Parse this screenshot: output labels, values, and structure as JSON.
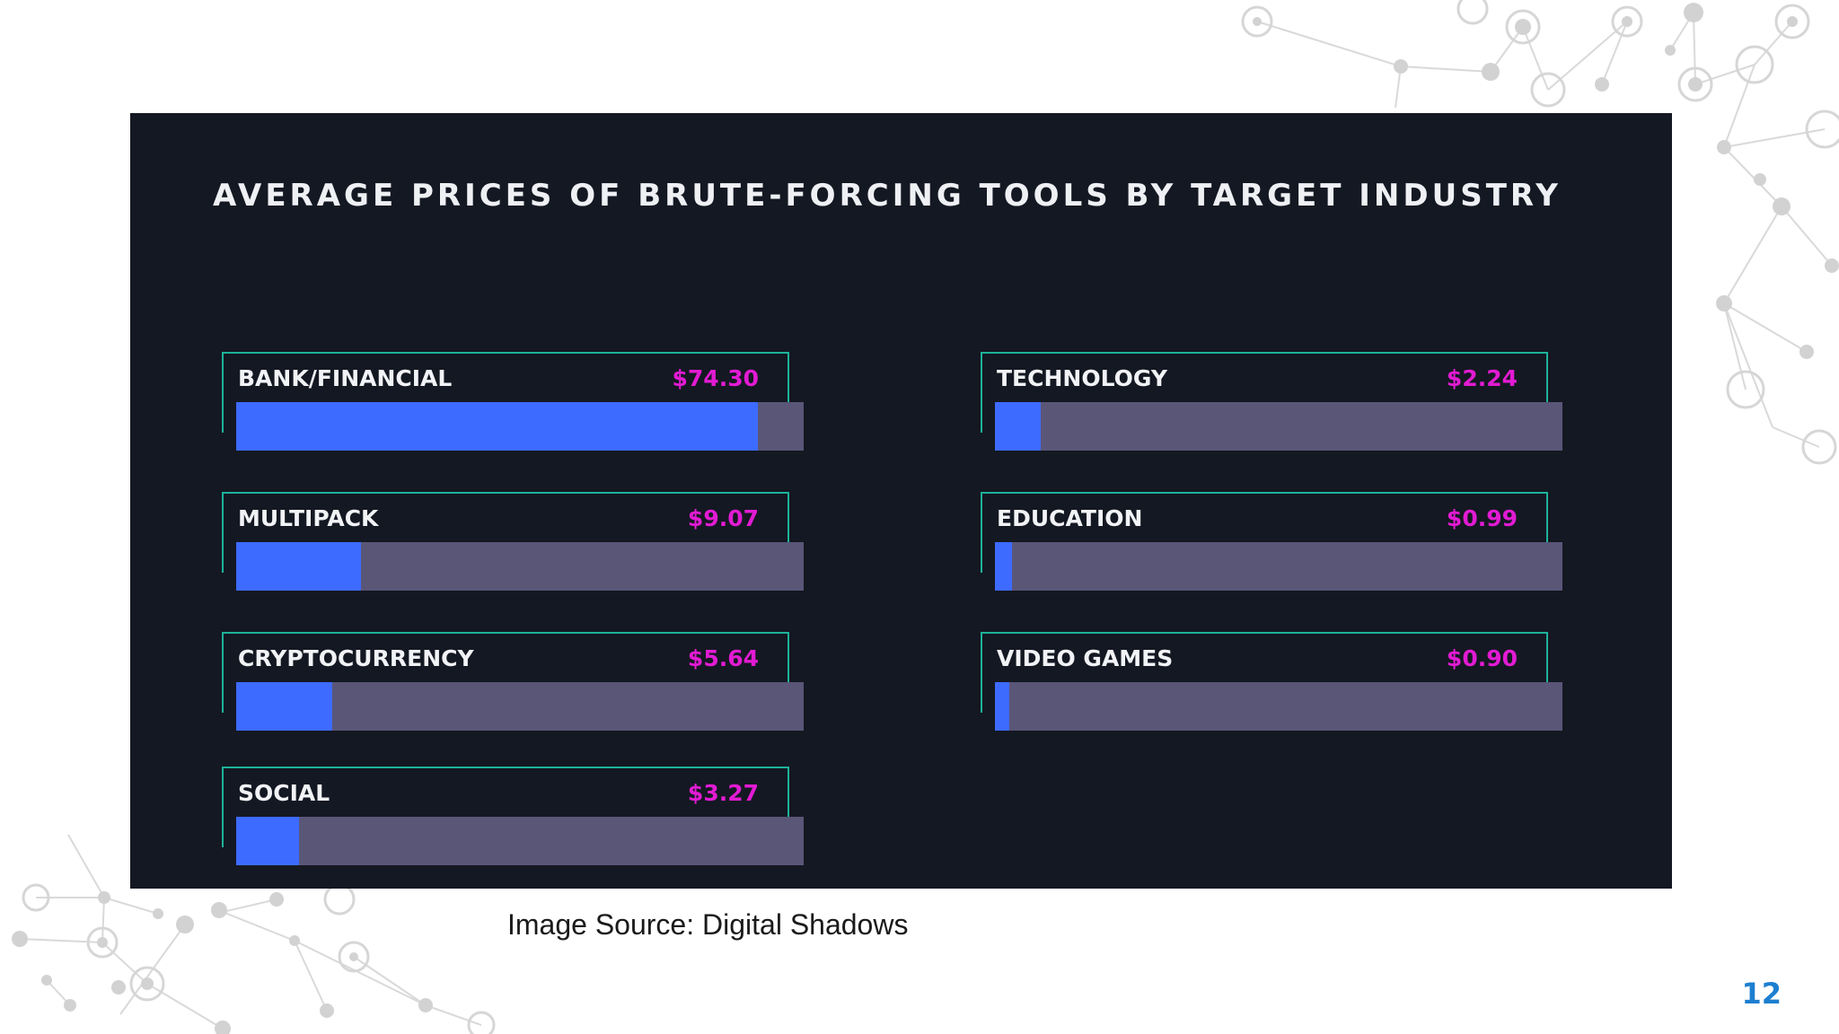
{
  "chart_data": {
    "type": "bar",
    "title": "AVERAGE PRICES OF BRUTE-FORCING TOOLS BY TARGET INDUSTRY",
    "categories": [
      "BANK/FINANCIAL",
      "MULTIPACK",
      "CRYPTOCURRENCY",
      "SOCIAL",
      "TECHNOLOGY",
      "EDUCATION",
      "VIDEO GAMES"
    ],
    "values": [
      74.3,
      9.07,
      5.64,
      3.27,
      2.24,
      0.99,
      0.9
    ],
    "value_labels": [
      "$74.30",
      "$9.07",
      "$5.64",
      "$3.27",
      "$2.24",
      "$0.99",
      "$0.90"
    ],
    "fill_fraction": [
      0.92,
      0.22,
      0.17,
      0.11,
      0.08,
      0.03,
      0.025
    ],
    "xlabel": "",
    "ylabel": "",
    "currency": "USD"
  },
  "source": "Image Source: Digital Shadows",
  "page_number": "12",
  "colors": {
    "panel": "#141822",
    "fill": "#3d6bff",
    "track": "#5a5678",
    "frame": "#1db39a",
    "value_text": "#e21bd3",
    "page_number": "#1d7fd0"
  }
}
